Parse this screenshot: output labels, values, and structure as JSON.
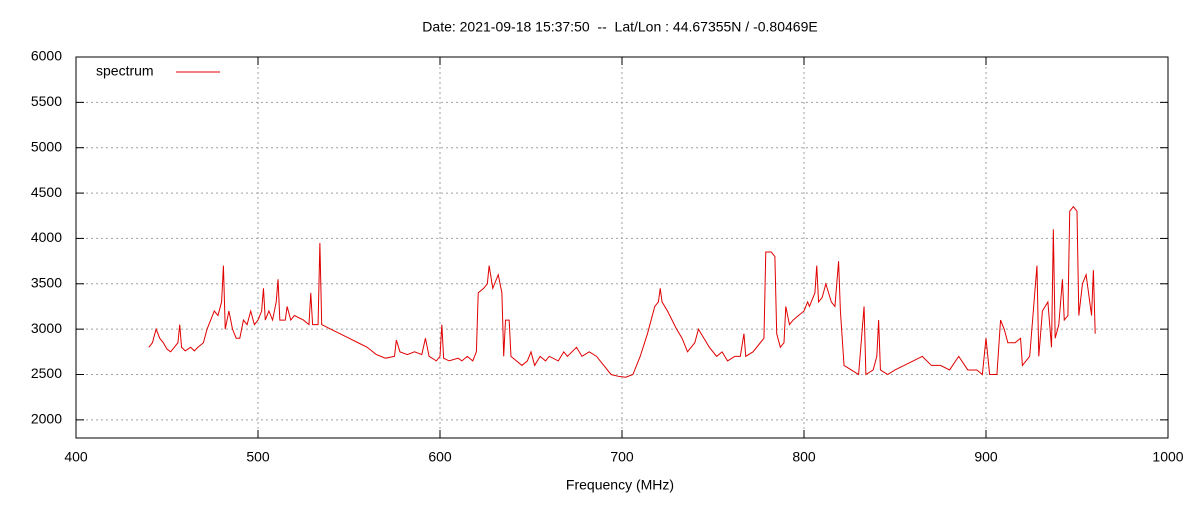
{
  "chart_data": {
    "type": "line",
    "title": "Date: 2021-09-18 15:37:50  --  Lat/Lon : 44.67355N / -0.80469E",
    "xlabel": "Frequency (MHz)",
    "xlim": [
      400,
      1000
    ],
    "xticks": [
      400,
      500,
      600,
      700,
      800,
      900,
      1000
    ],
    "ylim": [
      1800,
      6000
    ],
    "yticks": [
      2000,
      2500,
      3000,
      3500,
      4000,
      4500,
      5000,
      5500,
      6000
    ],
    "grid": true,
    "legend": "top-left",
    "x": [
      440,
      442,
      444,
      446,
      448,
      450,
      452,
      454,
      456,
      457,
      458,
      460,
      463,
      465,
      467,
      470,
      472,
      474,
      476,
      478,
      480,
      481,
      482,
      484,
      486,
      488,
      490,
      492,
      494,
      496,
      498,
      500,
      502,
      503,
      504,
      506,
      508,
      510,
      511,
      512,
      515,
      516,
      518,
      520,
      525,
      528,
      529,
      530,
      533,
      534,
      535,
      540,
      545,
      550,
      555,
      560,
      565,
      570,
      575,
      576,
      578,
      582,
      586,
      590,
      592,
      594,
      598,
      600,
      601,
      602,
      605,
      610,
      612,
      615,
      618,
      620,
      621,
      624,
      626,
      627,
      629,
      632,
      634,
      635,
      636,
      638,
      639,
      642,
      645,
      648,
      650,
      652,
      655,
      658,
      660,
      665,
      668,
      670,
      675,
      678,
      682,
      686,
      690,
      694,
      698,
      702,
      706,
      710,
      714,
      718,
      720,
      721,
      722,
      725,
      730,
      733,
      736,
      740,
      742,
      745,
      748,
      752,
      755,
      758,
      762,
      765,
      767,
      768,
      772,
      776,
      778,
      779,
      782,
      784,
      785,
      787,
      789,
      790,
      792,
      794,
      797,
      800,
      802,
      803,
      806,
      807,
      808,
      810,
      812,
      815,
      817,
      819,
      820,
      822,
      826,
      830,
      833,
      834,
      838,
      840,
      841,
      842,
      846,
      850,
      855,
      860,
      865,
      870,
      875,
      880,
      885,
      890,
      895,
      898,
      900,
      902,
      906,
      908,
      910,
      912,
      916,
      919,
      920,
      924,
      928,
      929,
      931,
      934,
      936,
      937,
      938,
      940,
      942,
      943,
      945,
      946,
      948,
      950,
      951,
      953,
      955,
      957,
      958,
      959,
      960
    ],
    "series": [
      {
        "name": "spectrum",
        "color": "#e00000",
        "values": [
          2800,
          2850,
          3000,
          2900,
          2850,
          2780,
          2750,
          2800,
          2850,
          3050,
          2800,
          2760,
          2800,
          2760,
          2800,
          2850,
          3000,
          3100,
          3200,
          3150,
          3300,
          3700,
          3000,
          3200,
          3000,
          2900,
          2900,
          3100,
          3050,
          3200,
          3050,
          3100,
          3200,
          3450,
          3100,
          3200,
          3100,
          3300,
          3550,
          3100,
          3100,
          3250,
          3100,
          3150,
          3100,
          3050,
          3400,
          3050,
          3050,
          3950,
          3050,
          3000,
          2950,
          2900,
          2850,
          2800,
          2720,
          2680,
          2700,
          2880,
          2750,
          2720,
          2750,
          2720,
          2900,
          2700,
          2650,
          2700,
          3050,
          2680,
          2650,
          2680,
          2650,
          2700,
          2650,
          2750,
          3400,
          3450,
          3500,
          3700,
          3450,
          3600,
          3400,
          2700,
          3100,
          3100,
          2700,
          2650,
          2600,
          2650,
          2750,
          2600,
          2700,
          2650,
          2700,
          2650,
          2750,
          2700,
          2800,
          2700,
          2750,
          2700,
          2600,
          2500,
          2480,
          2470,
          2500,
          2700,
          2950,
          3250,
          3300,
          3450,
          3300,
          3200,
          3000,
          2900,
          2750,
          2850,
          3000,
          2900,
          2800,
          2700,
          2750,
          2650,
          2700,
          2700,
          2950,
          2700,
          2750,
          2850,
          2900,
          3850,
          3850,
          3800,
          2950,
          2800,
          2850,
          3250,
          3050,
          3100,
          3150,
          3200,
          3300,
          3250,
          3400,
          3700,
          3300,
          3350,
          3500,
          3300,
          3250,
          3750,
          3200,
          2600,
          2550,
          2500,
          3250,
          2500,
          2550,
          2700,
          3100,
          2550,
          2500,
          2550,
          2600,
          2650,
          2700,
          2600,
          2600,
          2550,
          2700,
          2550,
          2550,
          2500,
          2900,
          2500,
          2500,
          3100,
          3000,
          2850,
          2850,
          2900,
          2600,
          2700,
          3700,
          2700,
          3200,
          3300,
          2800,
          4100,
          2900,
          3050,
          3550,
          3100,
          3150,
          4300,
          4350,
          4300,
          3150,
          3500,
          3600,
          3300,
          3150,
          3650,
          2950
        ]
      }
    ]
  }
}
